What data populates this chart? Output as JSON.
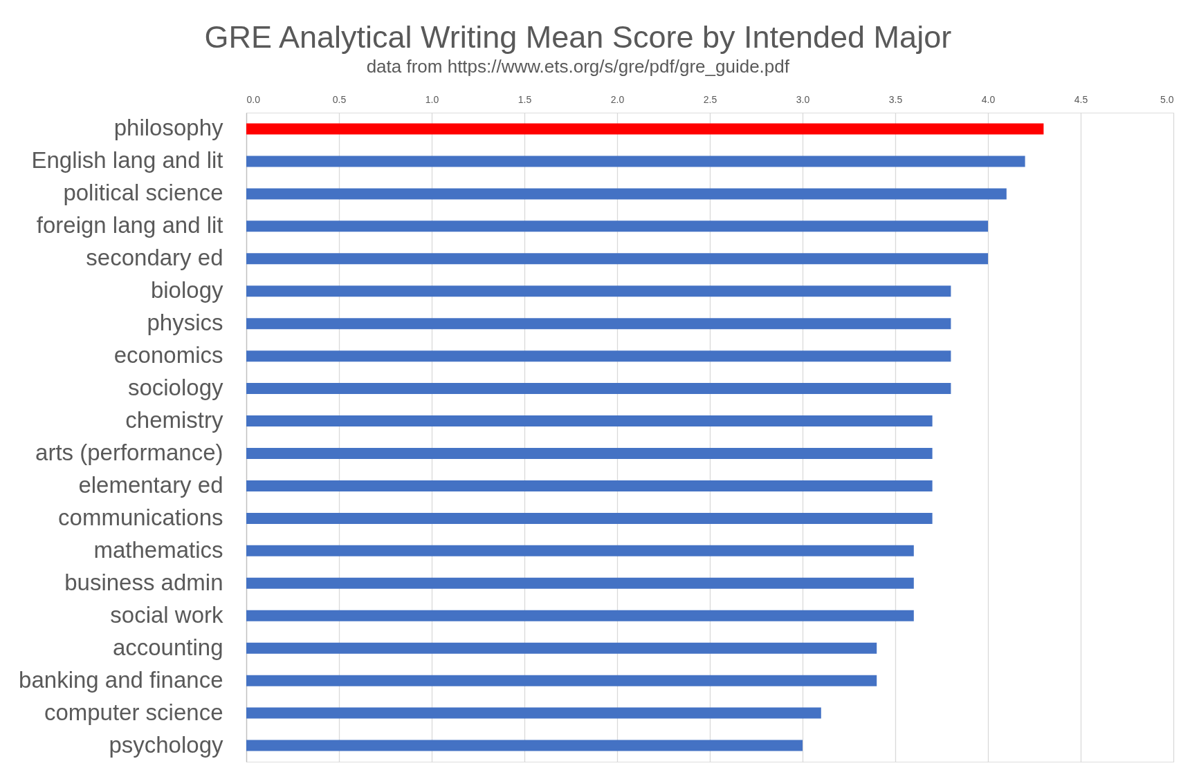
{
  "chart_data": {
    "type": "bar",
    "orientation": "horizontal",
    "title": "GRE Analytical Writing Mean Score by Intended Major",
    "subtitle": "data from https://www.ets.org/s/gre/pdf/gre_guide.pdf",
    "categories": [
      "philosophy",
      "English lang and lit",
      "political science",
      "foreign lang and lit",
      "secondary ed",
      "biology",
      "physics",
      "economics",
      "sociology",
      "chemistry",
      "arts (performance)",
      "elementary ed",
      "communications",
      "mathematics",
      "business admin",
      "social work",
      "accounting",
      "banking and finance",
      "computer science",
      "psychology"
    ],
    "values": [
      4.3,
      4.2,
      4.1,
      4.0,
      4.0,
      3.8,
      3.8,
      3.8,
      3.8,
      3.7,
      3.7,
      3.7,
      3.7,
      3.6,
      3.6,
      3.6,
      3.4,
      3.4,
      3.1,
      3.0
    ],
    "colors": [
      "#ff0000",
      "#4472c4",
      "#4472c4",
      "#4472c4",
      "#4472c4",
      "#4472c4",
      "#4472c4",
      "#4472c4",
      "#4472c4",
      "#4472c4",
      "#4472c4",
      "#4472c4",
      "#4472c4",
      "#4472c4",
      "#4472c4",
      "#4472c4",
      "#4472c4",
      "#4472c4",
      "#4472c4",
      "#4472c4"
    ],
    "xlim": [
      0,
      5
    ],
    "xticks": [
      {
        "value": 0,
        "label": "0.0"
      },
      {
        "value": 0.5,
        "label": "0.5"
      },
      {
        "value": 1,
        "label": "1.0"
      },
      {
        "value": 1.5,
        "label": "1.5"
      },
      {
        "value": 2,
        "label": "2.0"
      },
      {
        "value": 2.5,
        "label": "2.5"
      },
      {
        "value": 3,
        "label": "3.0"
      },
      {
        "value": 3.5,
        "label": "3.5"
      },
      {
        "value": 4,
        "label": "4.0"
      },
      {
        "value": 4.5,
        "label": "4.5"
      },
      {
        "value": 5,
        "label": "5.0"
      }
    ],
    "grid": "x"
  }
}
